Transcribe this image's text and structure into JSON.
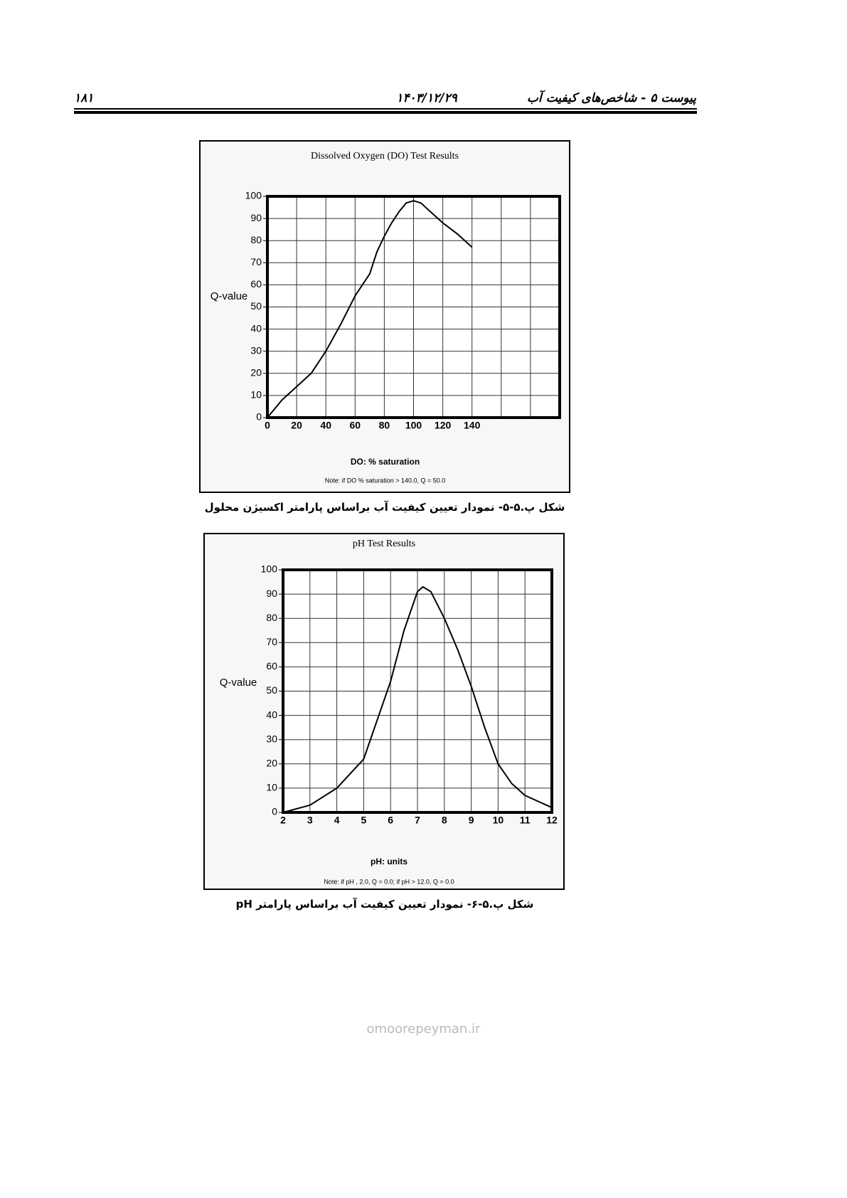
{
  "header": {
    "page_number": "۱۸۱",
    "date": "۱۴۰۳/۱۲/۲۹",
    "title": "پیوست ۵ - شاخص‌های کیفیت آب"
  },
  "chart_data": [
    {
      "type": "line",
      "title": "Dissolved Oxygen (DO) Test Results",
      "x_label": "DO: % saturation",
      "y_label": "Q-value",
      "note": "Note: if DO % saturation > 140.0, Q = 50.0",
      "caption": "شکل پ.۵-۵- نمودار تعیین کیفیت آب براساس پارامتر اکسیژن محلول",
      "x": [
        0,
        10,
        20,
        30,
        40,
        50,
        60,
        70,
        75,
        80,
        85,
        90,
        95,
        100,
        105,
        110,
        120,
        130,
        140
      ],
      "values": [
        0,
        8,
        14,
        20,
        30,
        42,
        55,
        65,
        75,
        82,
        88,
        93,
        97,
        98,
        97,
        94,
        88,
        83,
        77
      ],
      "color": "#000000",
      "xlim": [
        0,
        200
      ],
      "ylim": [
        0,
        100
      ],
      "xticks": [
        0,
        20,
        40,
        60,
        80,
        100,
        120,
        140
      ],
      "yticks": [
        0,
        10,
        20,
        30,
        40,
        50,
        60,
        70,
        80,
        90,
        100
      ],
      "grid": true
    },
    {
      "type": "line",
      "title": "pH Test Results",
      "x_label": "pH: units",
      "y_label": "Q-value",
      "note": "Note: if pH , 2.0, Q = 0.0; if pH > 12.0, Q = 0.0",
      "caption": "شکل پ.۵-۶- نمودار تعیین کیفیت آب براساس پارامتر pH",
      "x": [
        2,
        3,
        4,
        5,
        5.5,
        6,
        6.5,
        7,
        7.2,
        7.5,
        8,
        8.5,
        9,
        9.5,
        10,
        10.5,
        11,
        12
      ],
      "values": [
        0,
        3,
        10,
        22,
        38,
        54,
        75,
        91,
        93,
        91,
        80,
        67,
        52,
        35,
        20,
        12,
        7,
        2
      ],
      "color": "#000000",
      "xlim": [
        2,
        12
      ],
      "ylim": [
        0,
        100
      ],
      "xticks": [
        2,
        3,
        4,
        5,
        6,
        7,
        8,
        9,
        10,
        11,
        12
      ],
      "yticks": [
        0,
        10,
        20,
        30,
        40,
        50,
        60,
        70,
        80,
        90,
        100
      ],
      "grid": true
    }
  ],
  "watermark": "omoorepeyman.ir"
}
